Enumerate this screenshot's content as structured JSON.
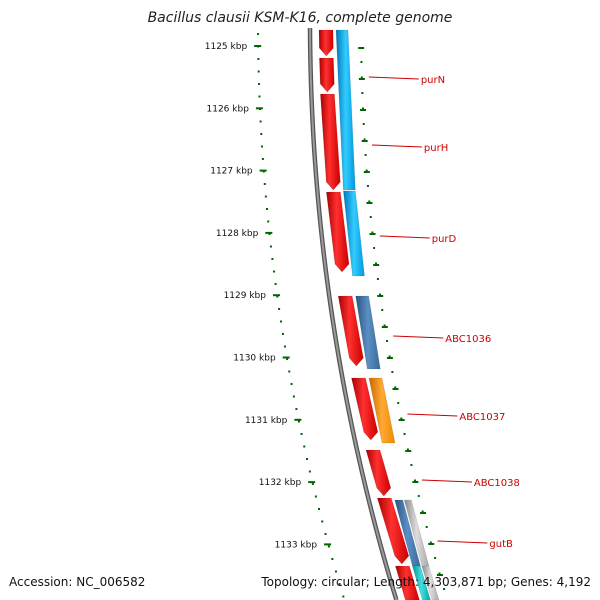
{
  "title": "Bacillus clausii KSM-K16, complete genome",
  "accession": "Accession: NC_006582",
  "summary": "Topology: circular; Length: 4,303,871 bp; Genes: 4,192",
  "colors": {
    "forward_gene": "#ee0000",
    "reverse_gene_cyan": "#11aaee",
    "reverse_gene_steel": "#4477aa",
    "reverse_gene_orange": "#ff8800",
    "reverse_gene_gray": "#aaaaaa",
    "backbone": "#777777",
    "scale_ticks": "#006600",
    "label_text": "#cc0000"
  },
  "scale": {
    "unit": "kbp",
    "ticks": [
      {
        "label": "1125 kbp"
      },
      {
        "label": "1126 kbp"
      },
      {
        "label": "1127 kbp"
      },
      {
        "label": "1128 kbp"
      },
      {
        "label": "1129 kbp"
      },
      {
        "label": "1130 kbp"
      },
      {
        "label": "1131 kbp"
      },
      {
        "label": "1132 kbp"
      },
      {
        "label": "1133 kbp"
      }
    ]
  },
  "gene_labels": [
    {
      "name": "purN"
    },
    {
      "name": "purH"
    },
    {
      "name": "purD"
    },
    {
      "name": "ABC1036"
    },
    {
      "name": "ABC1037"
    },
    {
      "name": "ABC1038"
    },
    {
      "name": "gutB"
    }
  ]
}
